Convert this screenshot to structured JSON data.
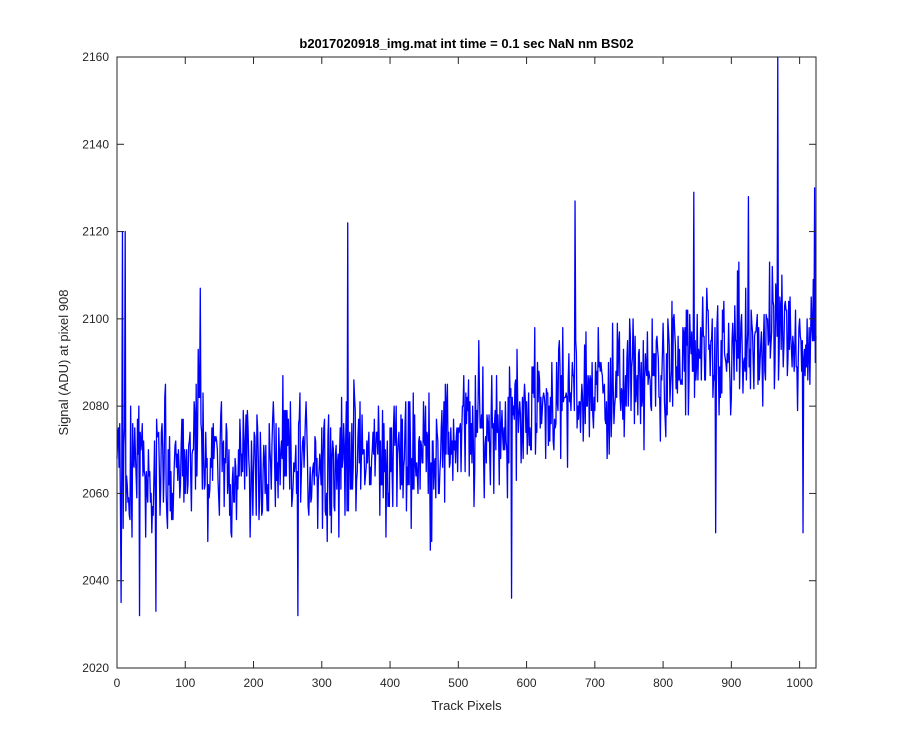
{
  "chart_data": {
    "type": "line",
    "title": "b2017020918_img.mat int time = 0.1 sec  NaN nm BS02",
    "xlabel": "Track Pixels",
    "ylabel": "Signal (ADU) at pixel 908",
    "xlim": [
      0,
      1024
    ],
    "ylim": [
      2020,
      2160
    ],
    "xticks": [
      0,
      100,
      200,
      300,
      400,
      500,
      600,
      700,
      800,
      900,
      1000
    ],
    "yticks": [
      2020,
      2040,
      2060,
      2080,
      2100,
      2120,
      2140,
      2160
    ],
    "grid": false,
    "legend": "none",
    "series_color": "#0000ff",
    "series": [
      {
        "x": [
          0,
          10,
          20,
          30,
          40,
          50,
          60,
          70,
          80,
          90,
          100,
          110,
          120,
          130,
          140,
          150,
          160,
          170,
          180,
          190,
          200,
          210,
          220,
          230,
          240,
          250,
          260,
          270,
          280,
          290,
          300,
          310,
          320,
          330,
          340,
          350,
          360,
          370,
          380,
          390,
          400,
          410,
          420,
          430,
          440,
          450,
          460,
          470,
          480,
          490,
          500,
          510,
          520,
          530,
          540,
          550,
          560,
          570,
          580,
          590,
          600,
          610,
          620,
          630,
          640,
          650,
          660,
          670,
          680,
          690,
          700,
          710,
          720,
          730,
          740,
          750,
          760,
          770,
          780,
          790,
          800,
          810,
          820,
          830,
          840,
          850,
          860,
          870,
          880,
          890,
          900,
          910,
          920,
          930,
          940,
          950,
          960,
          970,
          980,
          990,
          1000,
          1010,
          1020
        ],
        "values": [
          2075,
          2058,
          2062,
          2070,
          2068,
          2064,
          2071,
          2067,
          2060,
          2073,
          2066,
          2069,
          2076,
          2062,
          2070,
          2065,
          2068,
          2063,
          2071,
          2067,
          2064,
          2069,
          2062,
          2070,
          2066,
          2068,
          2064,
          2071,
          2065,
          2069,
          2066,
          2070,
          2064,
          2068,
          2072,
          2066,
          2069,
          2067,
          2071,
          2065,
          2068,
          2070,
          2066,
          2072,
          2068,
          2071,
          2067,
          2073,
          2069,
          2074,
          2072,
          2075,
          2071,
          2077,
          2073,
          2076,
          2078,
          2074,
          2079,
          2077,
          2080,
          2078,
          2082,
          2079,
          2083,
          2081,
          2080,
          2084,
          2082,
          2085,
          2083,
          2086,
          2084,
          2082,
          2087,
          2085,
          2088,
          2086,
          2084,
          2089,
          2087,
          2090,
          2088,
          2091,
          2089,
          2090,
          2092,
          2089,
          2093,
          2091,
          2088,
          2094,
          2092,
          2090,
          2095,
          2093,
          2097,
          2094,
          2096,
          2092,
          2098,
          2095,
          2093
        ]
      }
    ],
    "noise_band": 13,
    "spikes": [
      {
        "x": 6,
        "y": 2035
      },
      {
        "x": 8,
        "y": 2120
      },
      {
        "x": 12,
        "y": 2120
      },
      {
        "x": 33,
        "y": 2032
      },
      {
        "x": 57,
        "y": 2033
      },
      {
        "x": 122,
        "y": 2107
      },
      {
        "x": 265,
        "y": 2032
      },
      {
        "x": 338,
        "y": 2122
      },
      {
        "x": 578,
        "y": 2036
      },
      {
        "x": 671,
        "y": 2127
      },
      {
        "x": 845,
        "y": 2129
      },
      {
        "x": 877,
        "y": 2051
      },
      {
        "x": 925,
        "y": 2128
      },
      {
        "x": 968,
        "y": 2160
      },
      {
        "x": 1005,
        "y": 2051
      },
      {
        "x": 1022,
        "y": 2130
      }
    ]
  }
}
